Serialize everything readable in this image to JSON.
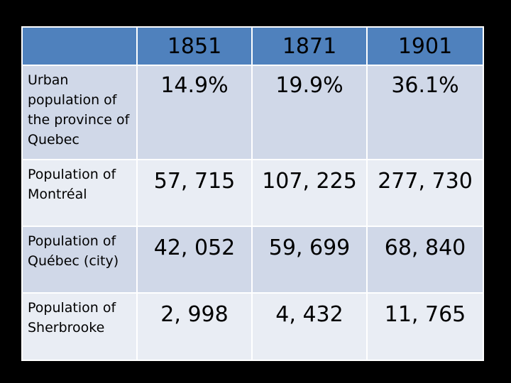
{
  "table": {
    "columns": [
      "",
      "1851",
      "1871",
      "1901"
    ],
    "rows": [
      {
        "label": "Urban population of the province of Quebec",
        "values": [
          "14.9%",
          "19.9%",
          "36.1%"
        ]
      },
      {
        "label": "Population of Montréal",
        "values": [
          "57, 715",
          "107, 225",
          "277, 730"
        ]
      },
      {
        "label": "Population of Québec (city)",
        "values": [
          "42, 052",
          "59, 699",
          "68, 840"
        ]
      },
      {
        "label": "Population of Sherbrooke",
        "values": [
          "2, 998",
          "4, 432",
          "11, 765"
        ]
      }
    ]
  },
  "colors": {
    "background": "#000000",
    "header": "#4f81bd",
    "row_dark": "#d0d8e8",
    "row_light": "#e9edf4"
  }
}
